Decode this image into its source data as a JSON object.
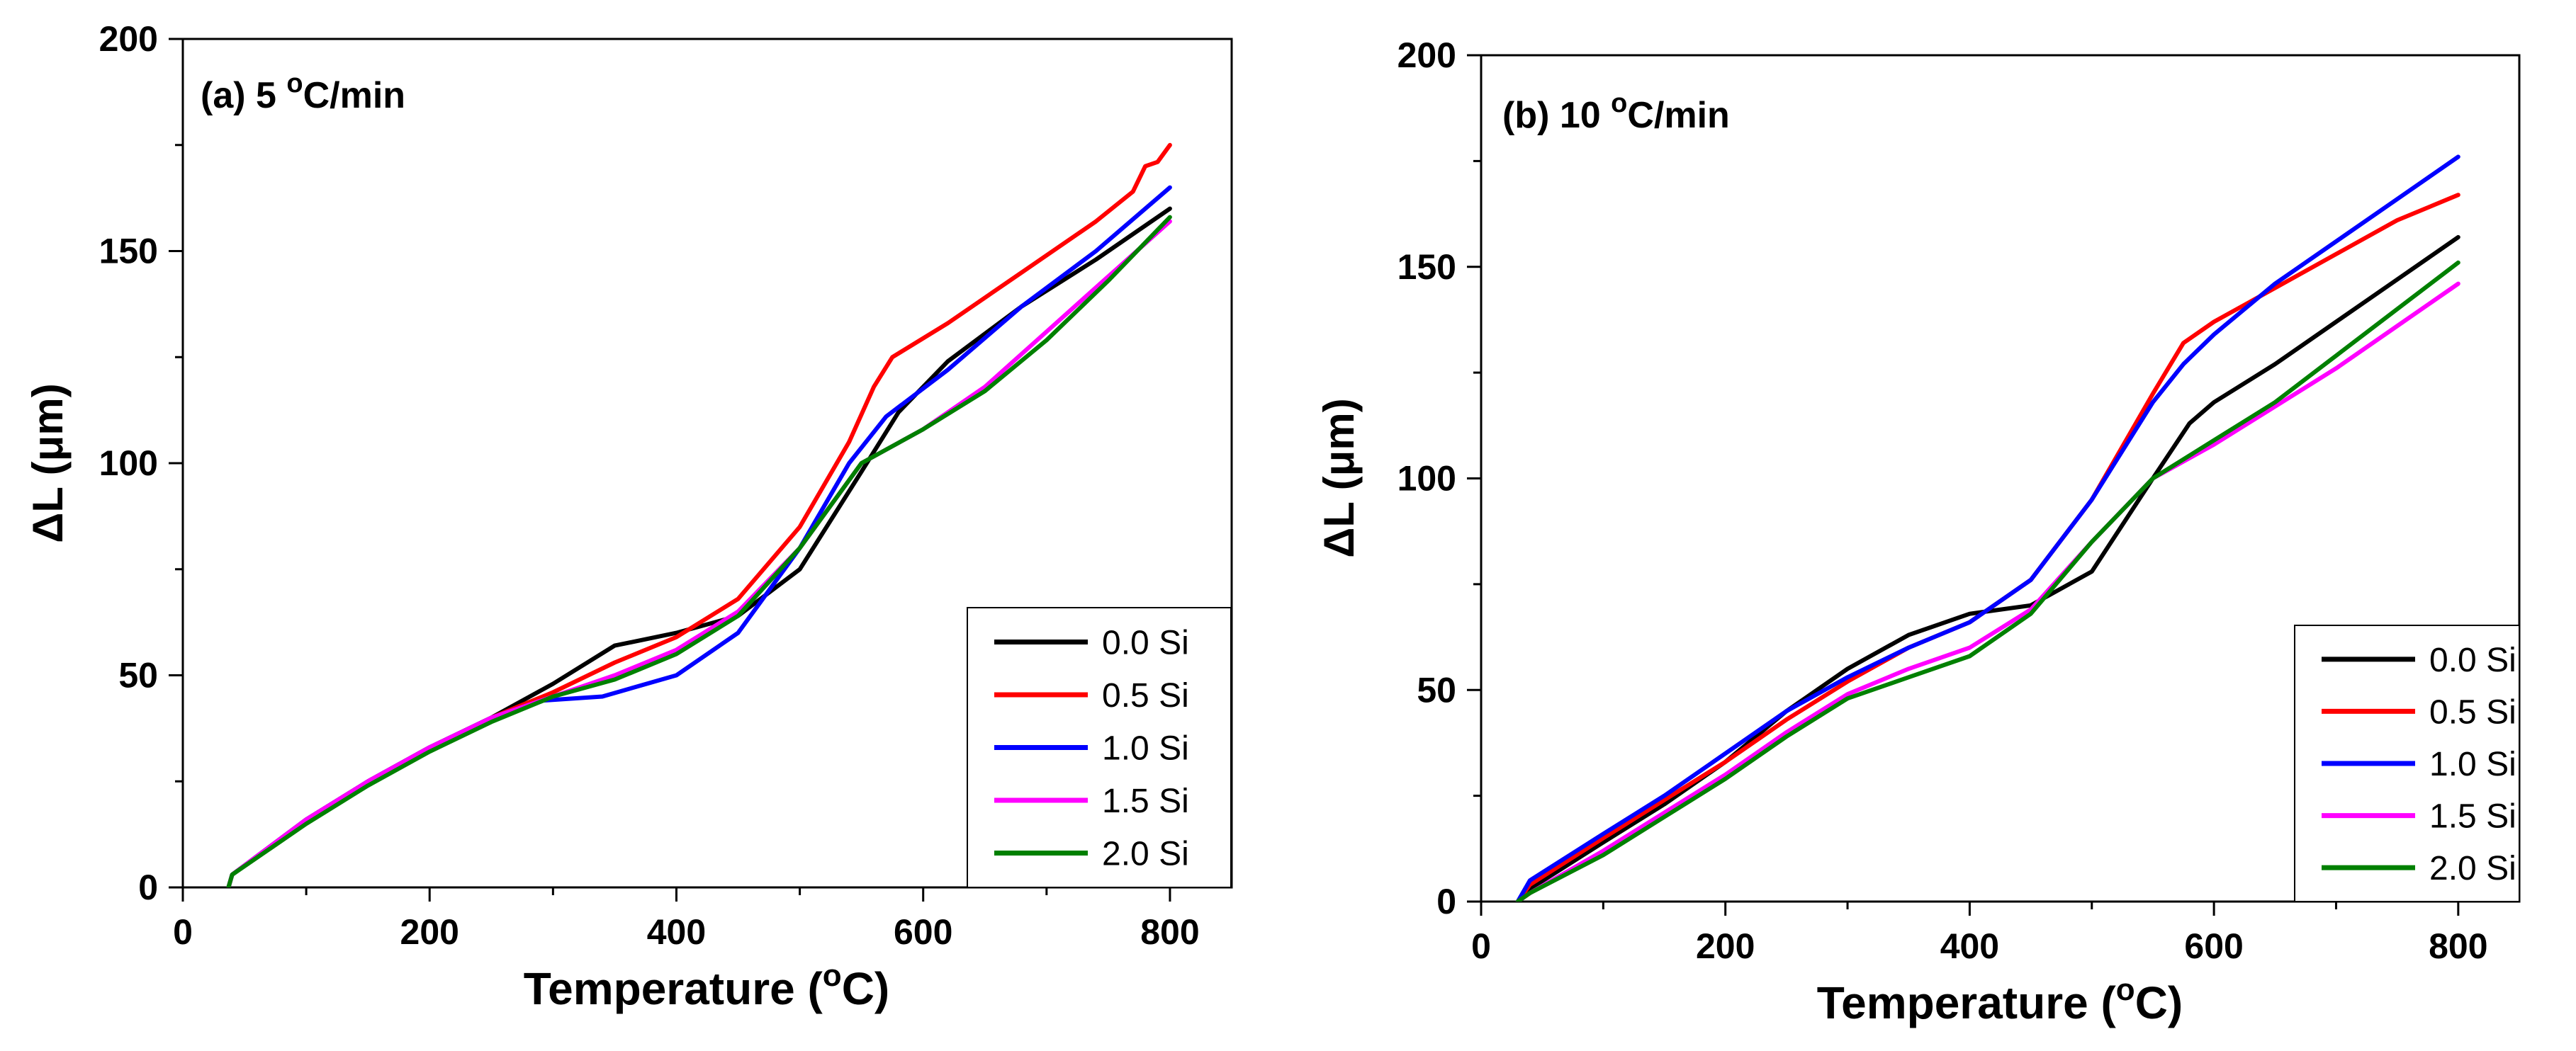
{
  "chart_data": [
    {
      "type": "line",
      "panel_label": "(a) 5 ",
      "panel_label_sup": "o",
      "panel_label_unit": "C/min",
      "xlabel": "Temperature (",
      "xlabel_sup": "o",
      "xlabel_end": "C)",
      "ylabel": "ΔL (μm)",
      "xlim": [
        0,
        850
      ],
      "ylim": [
        0,
        200
      ],
      "xticks": [
        0,
        200,
        400,
        600,
        800
      ],
      "yticks": [
        0,
        50,
        100,
        150,
        200
      ],
      "legend_position": "bottom-right",
      "series": [
        {
          "name": "0.0 Si",
          "color": "#000000",
          "x": [
            37,
            40,
            100,
            150,
            200,
            250,
            300,
            350,
            400,
            450,
            500,
            550,
            580,
            620,
            680,
            740,
            800
          ],
          "y": [
            0,
            3,
            16,
            25,
            33,
            40,
            48,
            57,
            60,
            64,
            75,
            98,
            112,
            124,
            137,
            148,
            160
          ]
        },
        {
          "name": "0.5 Si",
          "color": "#ff0000",
          "x": [
            37,
            40,
            100,
            150,
            200,
            250,
            300,
            350,
            400,
            450,
            500,
            540,
            560,
            575,
            620,
            680,
            740,
            770,
            780,
            790,
            800
          ],
          "y": [
            0,
            3,
            16,
            25,
            33,
            40,
            46,
            53,
            59,
            68,
            85,
            105,
            118,
            125,
            133,
            145,
            157,
            164,
            170,
            171,
            175
          ]
        },
        {
          "name": "1.0 Si",
          "color": "#0000ff",
          "x": [
            37,
            40,
            100,
            150,
            200,
            250,
            290,
            340,
            400,
            450,
            500,
            540,
            570,
            620,
            680,
            740,
            800
          ],
          "y": [
            0,
            3,
            16,
            25,
            33,
            40,
            44,
            45,
            50,
            60,
            80,
            100,
            111,
            122,
            137,
            150,
            165
          ]
        },
        {
          "name": "1.5 Si",
          "color": "#ff00ff",
          "x": [
            37,
            40,
            100,
            150,
            200,
            250,
            300,
            350,
            400,
            450,
            500,
            550,
            600,
            650,
            700,
            750,
            800
          ],
          "y": [
            0,
            3,
            16,
            25,
            33,
            40,
            45,
            50,
            56,
            65,
            80,
            100,
            108,
            118,
            131,
            144,
            157
          ]
        },
        {
          "name": "2.0 Si",
          "color": "#008000",
          "x": [
            37,
            40,
            100,
            150,
            200,
            250,
            300,
            350,
            400,
            450,
            500,
            550,
            600,
            650,
            700,
            750,
            800
          ],
          "y": [
            0,
            3,
            15,
            24,
            32,
            39,
            45,
            49,
            55,
            64,
            80,
            100,
            108,
            117,
            129,
            143,
            158
          ]
        }
      ]
    },
    {
      "type": "line",
      "panel_label": "(b) 10 ",
      "panel_label_sup": "o",
      "panel_label_unit": "C/min",
      "xlabel": "Temperature (",
      "xlabel_sup": "o",
      "xlabel_end": "C)",
      "ylabel": "ΔL (μm)",
      "xlim": [
        0,
        850
      ],
      "ylim": [
        0,
        200
      ],
      "xticks": [
        0,
        200,
        400,
        600,
        800
      ],
      "yticks": [
        0,
        50,
        100,
        150,
        200
      ],
      "legend_position": "bottom-right",
      "series": [
        {
          "name": "0.0 Si",
          "color": "#000000",
          "x": [
            30,
            40,
            100,
            150,
            200,
            250,
            300,
            350,
            400,
            450,
            500,
            550,
            580,
            600,
            650,
            700,
            750,
            800
          ],
          "y": [
            0,
            3,
            14,
            23,
            33,
            45,
            55,
            63,
            68,
            70,
            78,
            100,
            113,
            118,
            127,
            137,
            147,
            157
          ]
        },
        {
          "name": "0.5 Si",
          "color": "#ff0000",
          "x": [
            30,
            40,
            100,
            150,
            200,
            250,
            300,
            350,
            400,
            450,
            500,
            550,
            575,
            600,
            650,
            700,
            750,
            800
          ],
          "y": [
            0,
            4,
            15,
            24,
            33,
            43,
            52,
            60,
            66,
            76,
            95,
            120,
            132,
            137,
            145,
            153,
            161,
            167
          ]
        },
        {
          "name": "1.0 Si",
          "color": "#0000ff",
          "x": [
            30,
            40,
            100,
            150,
            200,
            250,
            300,
            350,
            400,
            450,
            500,
            550,
            575,
            600,
            650,
            700,
            750,
            800
          ],
          "y": [
            0,
            5,
            16,
            25,
            35,
            45,
            53,
            60,
            66,
            76,
            95,
            118,
            127,
            134,
            146,
            156,
            166,
            176
          ]
        },
        {
          "name": "1.5 Si",
          "color": "#ff00ff",
          "x": [
            30,
            40,
            100,
            150,
            200,
            250,
            300,
            350,
            400,
            450,
            500,
            550,
            600,
            650,
            700,
            750,
            800
          ],
          "y": [
            0,
            2,
            12,
            21,
            30,
            40,
            49,
            55,
            60,
            69,
            85,
            100,
            108,
            117,
            126,
            136,
            146
          ]
        },
        {
          "name": "2.0 Si",
          "color": "#008000",
          "x": [
            30,
            40,
            100,
            150,
            200,
            250,
            300,
            350,
            400,
            450,
            500,
            550,
            600,
            650,
            700,
            750,
            800
          ],
          "y": [
            0,
            2,
            11,
            20,
            29,
            39,
            48,
            53,
            58,
            68,
            85,
            100,
            109,
            118,
            129,
            140,
            151
          ]
        }
      ]
    }
  ]
}
